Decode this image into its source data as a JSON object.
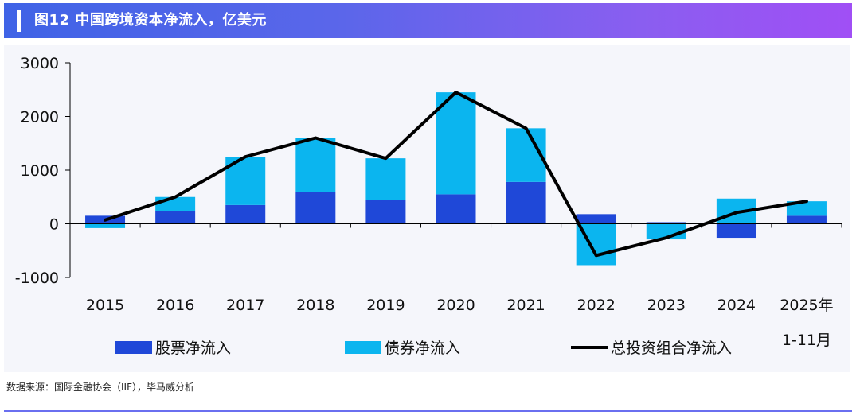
{
  "header": {
    "title": "图12 中国跨境资本净流入，亿美元"
  },
  "source": {
    "text": "数据来源：国际金融协会（IIF），毕马威分析"
  },
  "colors": {
    "equity": "#1f48d8",
    "bond": "#0bb5ef",
    "total": "#000000"
  },
  "chart_data": {
    "type": "bar",
    "title": "中国跨境资本净流入，亿美元",
    "categories": [
      "2015",
      "2016",
      "2017",
      "2018",
      "2019",
      "2020",
      "2021",
      "2022",
      "2023",
      "2024",
      "2025年\n1-11月"
    ],
    "series": [
      {
        "name": "股票净流入",
        "kind": "bar",
        "values": [
          150,
          230,
          350,
          600,
          450,
          550,
          780,
          180,
          30,
          -260,
          150
        ]
      },
      {
        "name": "债券净流入",
        "kind": "bar",
        "values": [
          -80,
          270,
          900,
          1000,
          770,
          1900,
          1000,
          -770,
          -290,
          470,
          270
        ]
      },
      {
        "name": "总投资组合净流入",
        "kind": "line",
        "values": [
          70,
          500,
          1250,
          1600,
          1220,
          2450,
          1780,
          -590,
          -260,
          210,
          420
        ]
      }
    ],
    "yticks": [
      -1000,
      0,
      1000,
      2000,
      3000
    ],
    "ylim": [
      -1000,
      3000
    ],
    "xlabel": "",
    "ylabel": "",
    "legend_position": "bottom"
  }
}
